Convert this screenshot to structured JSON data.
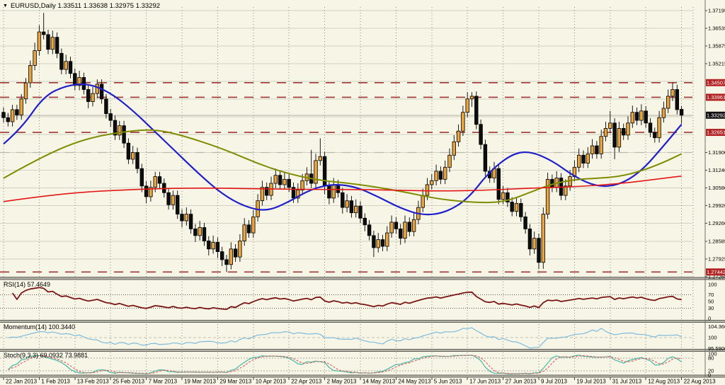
{
  "header": {
    "title_line": "EURUSD,Daily 1.33511 1.33638 1.32975 1.33292",
    "symbol": "EURUSD",
    "timeframe": "Daily"
  },
  "indicators": {
    "rsi": {
      "display": "RSI(14) 57.4649",
      "period": 14,
      "value": "57.4649",
      "scale_labels": [
        "100",
        "70",
        "50",
        "30",
        "0"
      ],
      "levels": [
        70,
        30
      ],
      "color": "#7a1616"
    },
    "momentum": {
      "display": "Momentum(14) 100.3440",
      "period": 14,
      "value": "100.3440",
      "scale_labels": [
        "104.3661",
        "100",
        "95.5906"
      ],
      "levels": [
        100
      ],
      "color": "#74b6da"
    },
    "stochastic": {
      "display": "Stoch(9,3,3) 69.0932 73.9881",
      "params": "9,3,3",
      "k_value": "69.0932",
      "d_value": "73.9881",
      "scale_labels": [
        "100",
        "80",
        "20",
        "0"
      ],
      "levels": [
        80,
        20
      ],
      "k_color": "#46b8a4",
      "d_color": "#d85c5c"
    }
  },
  "chart_data": {
    "type": "candlestick",
    "title": "EURUSD,Daily",
    "current_ohlc": {
      "open": 1.33511,
      "high": 1.33638,
      "low": 1.32975,
      "close": 1.33292
    },
    "x_axis_dates": [
      "22 Jan 2013",
      "1 Feb 2013",
      "13 Feb 2013",
      "25 Feb 2013",
      "7 Mar 2013",
      "19 Mar 2013",
      "29 Mar 2013",
      "10 Apr 2013",
      "22 Apr 2013",
      "2 May 2013",
      "14 May 2013",
      "24 May 2013",
      "5 Jun 2013",
      "17 Jun 2013",
      "27 Jun 2013",
      "9 Jul 2013",
      "19 Jul 2013",
      "31 Jul 2013",
      "12 Aug 2013",
      "22 Aug 2013"
    ],
    "y_axis_labels": [
      "1.37195",
      "1.36535",
      "1.35875",
      "1.35215",
      "1.31900",
      "1.31240",
      "1.30580",
      "1.29920",
      "1.29260",
      "1.28585",
      "1.27925",
      "1.27265"
    ],
    "y_gridlines": [
      1.37195,
      1.36535,
      1.35875,
      1.35215,
      1.34555,
      1.33895,
      1.33235,
      1.32575,
      1.319,
      1.3124,
      1.3058,
      1.2992,
      1.2926,
      1.28585,
      1.27925,
      1.27265
    ],
    "price_levels": {
      "highlighted": [
        "1.34507",
        "1.33961",
        "1.32651",
        "1.27442"
      ],
      "current_price": "1.33292",
      "gray_dashed": 1.319
    },
    "colors": {
      "background": "#f7f5e6",
      "grid": "#d2d2c4",
      "bull": "#e8a43f",
      "bear": "#0d0d0d",
      "ma_fast": "#2020c8",
      "ma_mid": "#7f8c00",
      "ma_slow": "#e41616",
      "level_dashed": "#a03636",
      "level_box": "#b22222",
      "current_box": "#111111"
    },
    "candles": [
      [
        1.334,
        1.3358,
        1.3302,
        1.332
      ],
      [
        1.332,
        1.3338,
        1.3287,
        1.3305
      ],
      [
        1.3305,
        1.3368,
        1.3287,
        1.335
      ],
      [
        1.335,
        1.3368,
        1.3312,
        1.333
      ],
      [
        1.333,
        1.3408,
        1.3312,
        1.339
      ],
      [
        1.339,
        1.3468,
        1.3372,
        1.345
      ],
      [
        1.345,
        1.3533,
        1.3432,
        1.3515
      ],
      [
        1.3515,
        1.36,
        1.3497,
        1.357
      ],
      [
        1.357,
        1.3665,
        1.3552,
        1.364
      ],
      [
        1.364,
        1.3711,
        1.3612,
        1.363
      ],
      [
        1.363,
        1.3648,
        1.3557,
        1.3575
      ],
      [
        1.3575,
        1.3645,
        1.3557,
        1.362
      ],
      [
        1.362,
        1.3638,
        1.3542,
        1.356
      ],
      [
        1.356,
        1.3578,
        1.3482,
        1.35
      ],
      [
        1.35,
        1.3555,
        1.3482,
        1.353
      ],
      [
        1.353,
        1.3548,
        1.3467,
        1.3485
      ],
      [
        1.3485,
        1.3503,
        1.3422,
        1.344
      ],
      [
        1.344,
        1.3495,
        1.3422,
        1.347
      ],
      [
        1.347,
        1.3488,
        1.3407,
        1.3425
      ],
      [
        1.3425,
        1.3443,
        1.3355,
        1.338
      ],
      [
        1.338,
        1.3435,
        1.3362,
        1.341
      ],
      [
        1.341,
        1.3463,
        1.3392,
        1.3445
      ],
      [
        1.3445,
        1.3463,
        1.3372,
        1.339
      ],
      [
        1.339,
        1.3408,
        1.3317,
        1.3335
      ],
      [
        1.3335,
        1.3353,
        1.3285,
        1.331
      ],
      [
        1.331,
        1.3328,
        1.3237,
        1.3255
      ],
      [
        1.3255,
        1.3308,
        1.3237,
        1.329
      ],
      [
        1.329,
        1.3308,
        1.3207,
        1.3225
      ],
      [
        1.3225,
        1.3243,
        1.3147,
        1.3165
      ],
      [
        1.3165,
        1.3215,
        1.3147,
        1.319
      ],
      [
        1.319,
        1.3208,
        1.3112,
        1.313
      ],
      [
        1.313,
        1.3148,
        1.3042,
        1.3065
      ],
      [
        1.3065,
        1.3083,
        1.3,
        1.3025
      ],
      [
        1.3025,
        1.3085,
        1.3007,
        1.306
      ],
      [
        1.306,
        1.3118,
        1.3042,
        1.31
      ],
      [
        1.31,
        1.3118,
        1.3057,
        1.3075
      ],
      [
        1.3075,
        1.3093,
        1.3022,
        1.304
      ],
      [
        1.304,
        1.3058,
        1.2977,
        1.2995
      ],
      [
        1.2995,
        1.3048,
        1.2977,
        1.303
      ],
      [
        1.303,
        1.3048,
        1.2942,
        1.296
      ],
      [
        1.296,
        1.2978,
        1.2911,
        1.2935
      ],
      [
        1.2935,
        1.2985,
        1.2917,
        1.296
      ],
      [
        1.296,
        1.2978,
        1.2887,
        1.2905
      ],
      [
        1.2905,
        1.2923,
        1.2856,
        1.288
      ],
      [
        1.288,
        1.2935,
        1.2862,
        1.291
      ],
      [
        1.291,
        1.2928,
        1.2842,
        1.286
      ],
      [
        1.286,
        1.2878,
        1.2806,
        1.283
      ],
      [
        1.283,
        1.288,
        1.2812,
        1.2855
      ],
      [
        1.2855,
        1.2873,
        1.2796,
        1.282
      ],
      [
        1.282,
        1.2838,
        1.2766,
        1.279
      ],
      [
        1.279,
        1.2808,
        1.2744,
        1.2772
      ],
      [
        1.2772,
        1.2855,
        1.2754,
        1.283
      ],
      [
        1.283,
        1.2848,
        1.2782,
        1.28
      ],
      [
        1.28,
        1.2885,
        1.2782,
        1.286
      ],
      [
        1.286,
        1.2945,
        1.2842,
        1.292
      ],
      [
        1.292,
        1.2938,
        1.2872,
        1.289
      ],
      [
        1.289,
        1.2975,
        1.2872,
        1.295
      ],
      [
        1.295,
        1.3035,
        1.2932,
        1.301
      ],
      [
        1.301,
        1.3085,
        1.2992,
        1.306
      ],
      [
        1.306,
        1.3078,
        1.3012,
        1.303
      ],
      [
        1.303,
        1.31,
        1.3012,
        1.3075
      ],
      [
        1.3075,
        1.313,
        1.3057,
        1.3105
      ],
      [
        1.3105,
        1.3123,
        1.3052,
        1.307
      ],
      [
        1.307,
        1.3115,
        1.3052,
        1.309
      ],
      [
        1.309,
        1.3108,
        1.3042,
        1.306
      ],
      [
        1.306,
        1.3078,
        1.3002,
        1.302
      ],
      [
        1.302,
        1.3075,
        1.3002,
        1.305
      ],
      [
        1.305,
        1.311,
        1.3032,
        1.3085
      ],
      [
        1.3085,
        1.3135,
        1.3067,
        1.311
      ],
      [
        1.311,
        1.32,
        1.3057,
        1.3075
      ],
      [
        1.3075,
        1.3185,
        1.3057,
        1.316
      ],
      [
        1.316,
        1.3243,
        1.3142,
        1.3175
      ],
      [
        1.3175,
        1.3193,
        1.3035,
        1.3065
      ],
      [
        1.3065,
        1.3083,
        1.2997,
        1.302
      ],
      [
        1.302,
        1.3095,
        1.3002,
        1.307
      ],
      [
        1.307,
        1.3088,
        1.3022,
        1.304
      ],
      [
        1.304,
        1.3058,
        1.2962,
        1.2985
      ],
      [
        1.2985,
        1.3035,
        1.2967,
        1.301
      ],
      [
        1.301,
        1.3028,
        1.2947,
        1.2965
      ],
      [
        1.2965,
        1.3015,
        1.2947,
        1.299
      ],
      [
        1.299,
        1.3008,
        1.2927,
        1.2945
      ],
      [
        1.2945,
        1.2963,
        1.2896,
        1.292
      ],
      [
        1.292,
        1.2938,
        1.2862,
        1.288
      ],
      [
        1.288,
        1.2898,
        1.28,
        1.2835
      ],
      [
        1.2835,
        1.289,
        1.2817,
        1.2865
      ],
      [
        1.2865,
        1.2883,
        1.2822,
        1.284
      ],
      [
        1.284,
        1.2915,
        1.2822,
        1.289
      ],
      [
        1.289,
        1.2955,
        1.2872,
        1.293
      ],
      [
        1.293,
        1.2948,
        1.2887,
        1.2905
      ],
      [
        1.2905,
        1.2923,
        1.2846,
        1.287
      ],
      [
        1.287,
        1.2955,
        1.2852,
        1.293
      ],
      [
        1.293,
        1.2948,
        1.2877,
        1.2895
      ],
      [
        1.2895,
        1.2965,
        1.2877,
        1.294
      ],
      [
        1.294,
        1.301,
        1.2922,
        1.2985
      ],
      [
        1.2985,
        1.3055,
        1.2967,
        1.303
      ],
      [
        1.303,
        1.3095,
        1.3012,
        1.307
      ],
      [
        1.307,
        1.311,
        1.3052,
        1.3085
      ],
      [
        1.3085,
        1.3145,
        1.3067,
        1.312
      ],
      [
        1.312,
        1.3138,
        1.3072,
        1.309
      ],
      [
        1.309,
        1.316,
        1.3072,
        1.3135
      ],
      [
        1.3135,
        1.3205,
        1.3117,
        1.318
      ],
      [
        1.318,
        1.3255,
        1.3162,
        1.323
      ],
      [
        1.323,
        1.3295,
        1.3212,
        1.327
      ],
      [
        1.327,
        1.3365,
        1.3252,
        1.334
      ],
      [
        1.334,
        1.3415,
        1.3322,
        1.339
      ],
      [
        1.339,
        1.3415,
        1.336,
        1.34
      ],
      [
        1.34,
        1.3418,
        1.3277,
        1.3295
      ],
      [
        1.3295,
        1.3313,
        1.3202,
        1.322
      ],
      [
        1.322,
        1.3238,
        1.3102,
        1.312
      ],
      [
        1.312,
        1.3138,
        1.3077,
        1.3095
      ],
      [
        1.3095,
        1.3155,
        1.3077,
        1.313
      ],
      [
        1.313,
        1.3148,
        1.2997,
        1.3015
      ],
      [
        1.3015,
        1.3065,
        1.2997,
        1.304
      ],
      [
        1.304,
        1.3058,
        1.2987,
        1.3005
      ],
      [
        1.3005,
        1.3023,
        1.2952,
        1.297
      ],
      [
        1.297,
        1.3025,
        1.2952,
        1.3
      ],
      [
        1.3,
        1.3018,
        1.2932,
        1.295
      ],
      [
        1.295,
        1.2968,
        1.2887,
        1.2905
      ],
      [
        1.2905,
        1.2923,
        1.2806,
        1.283
      ],
      [
        1.283,
        1.2895,
        1.2812,
        1.287
      ],
      [
        1.287,
        1.2888,
        1.2755,
        1.278
      ],
      [
        1.278,
        1.2985,
        1.2756,
        1.296
      ],
      [
        1.296,
        1.3115,
        1.2942,
        1.309
      ],
      [
        1.309,
        1.3108,
        1.3042,
        1.306
      ],
      [
        1.306,
        1.312,
        1.3042,
        1.3095
      ],
      [
        1.3095,
        1.3113,
        1.3012,
        1.303
      ],
      [
        1.303,
        1.309,
        1.3012,
        1.3065
      ],
      [
        1.3065,
        1.3125,
        1.3047,
        1.31
      ],
      [
        1.31,
        1.316,
        1.3082,
        1.3135
      ],
      [
        1.3135,
        1.3205,
        1.3117,
        1.318
      ],
      [
        1.318,
        1.3198,
        1.3132,
        1.315
      ],
      [
        1.315,
        1.321,
        1.3132,
        1.3185
      ],
      [
        1.3185,
        1.324,
        1.3167,
        1.3215
      ],
      [
        1.3215,
        1.3233,
        1.3167,
        1.3185
      ],
      [
        1.3185,
        1.3275,
        1.3167,
        1.325
      ],
      [
        1.325,
        1.3305,
        1.3232,
        1.328
      ],
      [
        1.328,
        1.3345,
        1.3262,
        1.33
      ],
      [
        1.33,
        1.3318,
        1.3165,
        1.321
      ],
      [
        1.321,
        1.3305,
        1.3192,
        1.328
      ],
      [
        1.328,
        1.3298,
        1.3237,
        1.3255
      ],
      [
        1.3255,
        1.3325,
        1.3237,
        1.33
      ],
      [
        1.33,
        1.3365,
        1.3282,
        1.334
      ],
      [
        1.334,
        1.3358,
        1.3292,
        1.331
      ],
      [
        1.331,
        1.337,
        1.3292,
        1.3345
      ],
      [
        1.3345,
        1.3363,
        1.3282,
        1.33
      ],
      [
        1.33,
        1.3318,
        1.3247,
        1.3265
      ],
      [
        1.3265,
        1.3283,
        1.3227,
        1.3245
      ],
      [
        1.3245,
        1.3345,
        1.3227,
        1.332
      ],
      [
        1.332,
        1.338,
        1.3302,
        1.3355
      ],
      [
        1.3355,
        1.3425,
        1.3337,
        1.34
      ],
      [
        1.34,
        1.3452,
        1.3382,
        1.3425
      ],
      [
        1.3425,
        1.3443,
        1.3332,
        1.335
      ],
      [
        1.33511,
        1.33638,
        1.32975,
        1.33292
      ]
    ],
    "moving_averages": [
      {
        "name": "ma-fast-blue",
        "color_key": "ma_fast",
        "width": 2.2,
        "points": [
          [
            0,
            1.3222
          ],
          [
            4,
            1.328
          ],
          [
            9,
            1.34
          ],
          [
            14,
            1.344
          ],
          [
            19,
            1.3448
          ],
          [
            24,
            1.3413
          ],
          [
            29,
            1.3347
          ],
          [
            34,
            1.3267
          ],
          [
            39,
            1.3187
          ],
          [
            44,
            1.3107
          ],
          [
            49,
            1.3035
          ],
          [
            54,
            1.2988
          ],
          [
            59,
            1.297
          ],
          [
            64,
            1.3006
          ],
          [
            69,
            1.3054
          ],
          [
            74,
            1.3073
          ],
          [
            79,
            1.3062
          ],
          [
            84,
            1.3025
          ],
          [
            89,
            1.2982
          ],
          [
            94,
            1.2955
          ],
          [
            99,
            1.2965
          ],
          [
            104,
            1.3015
          ],
          [
            109,
            1.312
          ],
          [
            114,
            1.3185
          ],
          [
            118,
            1.3195
          ],
          [
            123,
            1.316
          ],
          [
            128,
            1.31
          ],
          [
            133,
            1.3062
          ],
          [
            138,
            1.3068
          ],
          [
            143,
            1.312
          ],
          [
            148,
            1.3215
          ],
          [
            152,
            1.3295
          ]
        ]
      },
      {
        "name": "ma-mid-olive",
        "color_key": "ma_mid",
        "width": 2.0,
        "points": [
          [
            0,
            1.3094
          ],
          [
            9,
            1.3179
          ],
          [
            19,
            1.3246
          ],
          [
            29,
            1.3272
          ],
          [
            34,
            1.3275
          ],
          [
            39,
            1.3259
          ],
          [
            49,
            1.3206
          ],
          [
            59,
            1.3134
          ],
          [
            69,
            1.3089
          ],
          [
            79,
            1.3073
          ],
          [
            89,
            1.3046
          ],
          [
            98,
            1.3014
          ],
          [
            108,
            1.3001
          ],
          [
            113,
            1.3009
          ],
          [
            118,
            1.3041
          ],
          [
            123,
            1.3073
          ],
          [
            128,
            1.3089
          ],
          [
            133,
            1.3094
          ],
          [
            138,
            1.31
          ],
          [
            143,
            1.3121
          ],
          [
            148,
            1.3153
          ],
          [
            152,
            1.3185
          ]
        ]
      },
      {
        "name": "ma-slow-red",
        "color_key": "ma_slow",
        "width": 1.6,
        "points": [
          [
            0,
            1.3007
          ],
          [
            9,
            1.3028
          ],
          [
            19,
            1.3044
          ],
          [
            29,
            1.3052
          ],
          [
            39,
            1.3057
          ],
          [
            49,
            1.3057
          ],
          [
            59,
            1.3054
          ],
          [
            69,
            1.3052
          ],
          [
            79,
            1.3052
          ],
          [
            89,
            1.3049
          ],
          [
            98,
            1.3046
          ],
          [
            108,
            1.3049
          ],
          [
            118,
            1.3057
          ],
          [
            128,
            1.3062
          ],
          [
            138,
            1.3073
          ],
          [
            148,
            1.3094
          ],
          [
            152,
            1.3102
          ]
        ]
      }
    ]
  }
}
